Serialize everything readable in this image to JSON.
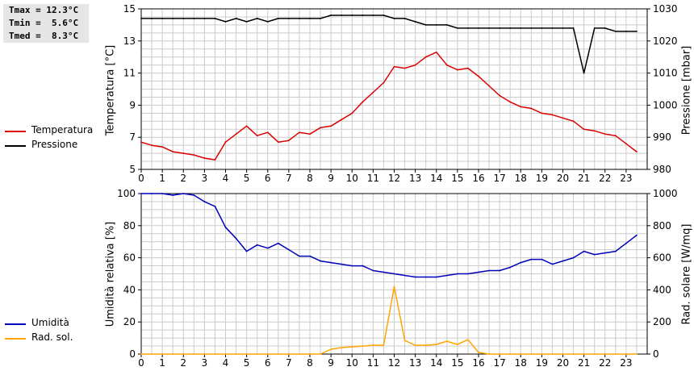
{
  "stats": {
    "tmax": "Tmax = 12.3°C",
    "tmin": "Tmin =  5.6°C",
    "tmed": "Tmed =  8.3°C"
  },
  "colors": {
    "temperatura": "#dd0000",
    "pressione": "#000000",
    "umidita": "#0000bb",
    "rad_sol": "#ffa500",
    "grid": "#cccccc"
  },
  "chart_data": [
    {
      "type": "line",
      "x_ticks": [
        "0",
        "1",
        "2",
        "3",
        "4",
        "5",
        "6",
        "7",
        "8",
        "9",
        "10",
        "11",
        "12",
        "13",
        "14",
        "15",
        "16",
        "17",
        "18",
        "19",
        "20",
        "21",
        "22",
        "23"
      ],
      "xlim": [
        0,
        24
      ],
      "ylabel_left": "Temperatura [°C]",
      "ylabel_right": "Pressione [mbar]",
      "ylim_left": [
        5,
        15
      ],
      "ylim_right": [
        980,
        1030
      ],
      "yticks_left": [
        "5",
        "7",
        "9",
        "11",
        "13",
        "15"
      ],
      "yticks_right": [
        "980",
        "990",
        "1000",
        "1010",
        "1020",
        "1030"
      ],
      "grid": true,
      "series": [
        {
          "name": "Temperatura",
          "axis": "left",
          "color": "#dd0000",
          "x": [
            0,
            0.5,
            1,
            1.5,
            2,
            2.5,
            3,
            3.5,
            4,
            4.5,
            5,
            5.5,
            6,
            6.5,
            7,
            7.5,
            8,
            8.5,
            9,
            9.5,
            10,
            10.5,
            11,
            11.5,
            12,
            12.5,
            13,
            13.5,
            14,
            14.5,
            15,
            15.5,
            16,
            16.5,
            17,
            17.5,
            18,
            18.5,
            19,
            19.5,
            20,
            20.5,
            21,
            21.5,
            22,
            22.5,
            23,
            23.5
          ],
          "values": [
            6.7,
            6.5,
            6.4,
            6.1,
            6.0,
            5.9,
            5.7,
            5.6,
            6.7,
            7.2,
            7.7,
            7.1,
            7.3,
            6.7,
            6.8,
            7.3,
            7.2,
            7.6,
            7.7,
            8.1,
            8.5,
            9.2,
            9.8,
            10.4,
            11.4,
            11.3,
            11.5,
            12.0,
            12.3,
            11.5,
            11.2,
            11.3,
            10.8,
            10.2,
            9.6,
            9.2,
            8.9,
            8.8,
            8.5,
            8.4,
            8.2,
            8.0,
            7.5,
            7.4,
            7.2,
            7.1,
            6.6,
            6.1
          ]
        },
        {
          "name": "Pressione",
          "axis": "right",
          "color": "#000000",
          "x": [
            0,
            0.5,
            1,
            1.5,
            2,
            2.5,
            3,
            3.5,
            4,
            4.5,
            5,
            5.5,
            6,
            6.5,
            7,
            7.5,
            8,
            8.5,
            9,
            9.5,
            10,
            10.5,
            11,
            11.5,
            12,
            12.5,
            13,
            13.5,
            14,
            14.5,
            15,
            15.5,
            16,
            16.5,
            17,
            17.5,
            18,
            18.5,
            19,
            19.5,
            20,
            20.5,
            21,
            21.5,
            22,
            22.5,
            23,
            23.5
          ],
          "values": [
            1027,
            1027,
            1027,
            1027,
            1027,
            1027,
            1027,
            1027,
            1026,
            1027,
            1026,
            1027,
            1026,
            1027,
            1027,
            1027,
            1027,
            1027,
            1028,
            1028,
            1028,
            1028,
            1028,
            1028,
            1027,
            1027,
            1026,
            1025,
            1025,
            1025,
            1024,
            1024,
            1024,
            1024,
            1024,
            1024,
            1024,
            1024,
            1024,
            1024,
            1024,
            1024,
            1010,
            1024,
            1024,
            1023,
            1023,
            1023
          ]
        }
      ]
    },
    {
      "type": "line",
      "x_ticks": [
        "0",
        "1",
        "2",
        "3",
        "4",
        "5",
        "6",
        "7",
        "8",
        "9",
        "10",
        "11",
        "12",
        "13",
        "14",
        "15",
        "16",
        "17",
        "18",
        "19",
        "20",
        "21",
        "22",
        "23"
      ],
      "xlim": [
        0,
        24
      ],
      "ylabel_left": "Umidità relativa [%]",
      "ylabel_right": "Rad. solare [W/mq]",
      "ylim_left": [
        0,
        100
      ],
      "ylim_right": [
        0,
        1000
      ],
      "yticks_left": [
        "0",
        "20",
        "40",
        "60",
        "80",
        "100"
      ],
      "yticks_right": [
        "0",
        "200",
        "400",
        "600",
        "800",
        "1000"
      ],
      "grid": true,
      "series": [
        {
          "name": "Umidità",
          "axis": "left",
          "color": "#0000bb",
          "x": [
            0,
            0.5,
            1,
            1.5,
            2,
            2.5,
            3,
            3.5,
            4,
            4.5,
            5,
            5.5,
            6,
            6.5,
            7,
            7.5,
            8,
            8.5,
            9,
            9.5,
            10,
            10.5,
            11,
            11.5,
            12,
            12.5,
            13,
            13.5,
            14,
            14.5,
            15,
            15.5,
            16,
            16.5,
            17,
            17.5,
            18,
            18.5,
            19,
            19.5,
            20,
            20.5,
            21,
            21.5,
            22,
            22.5,
            23,
            23.5
          ],
          "values": [
            100,
            100,
            100,
            99,
            100,
            99,
            95,
            92,
            79,
            72,
            64,
            68,
            66,
            69,
            65,
            61,
            61,
            58,
            57,
            56,
            55,
            55,
            52,
            51,
            50,
            49,
            48,
            48,
            48,
            49,
            50,
            50,
            51,
            52,
            52,
            54,
            57,
            59,
            59,
            56,
            58,
            60,
            64,
            62,
            63,
            64,
            69,
            74
          ]
        },
        {
          "name": "Rad. sol.",
          "axis": "right",
          "color": "#ffa500",
          "x": [
            0,
            0.5,
            1,
            1.5,
            2,
            2.5,
            3,
            3.5,
            4,
            4.5,
            5,
            5.5,
            6,
            6.5,
            7,
            7.5,
            8,
            8.5,
            9,
            9.5,
            10,
            10.5,
            11,
            11.5,
            12,
            12.5,
            13,
            13.5,
            14,
            14.5,
            15,
            15.5,
            16,
            16.5,
            17,
            17.5,
            18,
            18.5,
            19,
            19.5,
            20,
            20.5,
            21,
            21.5,
            22,
            22.5,
            23,
            23.5
          ],
          "values": [
            0,
            0,
            0,
            0,
            0,
            0,
            0,
            0,
            0,
            0,
            0,
            0,
            0,
            0,
            0,
            0,
            0,
            0,
            30,
            40,
            45,
            50,
            55,
            55,
            420,
            85,
            55,
            55,
            60,
            80,
            60,
            90,
            10,
            0,
            0,
            0,
            0,
            0,
            0,
            0,
            0,
            0,
            0,
            0,
            0,
            0,
            0,
            0
          ]
        }
      ]
    }
  ]
}
